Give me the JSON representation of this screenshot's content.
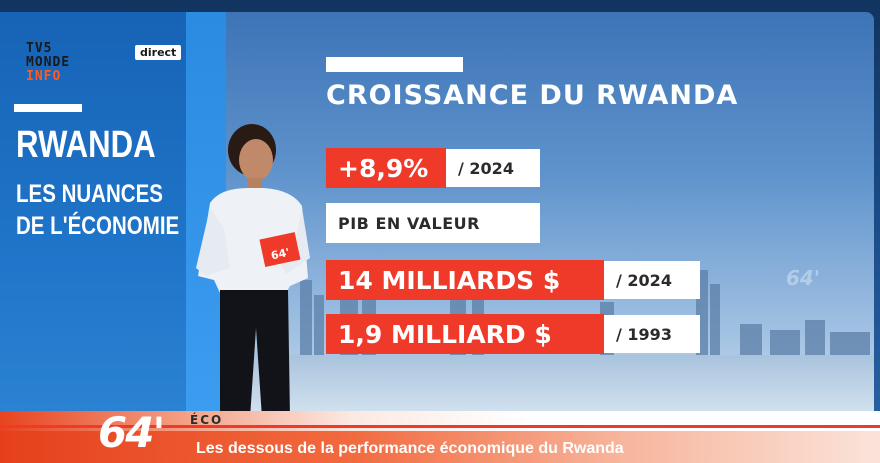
{
  "channel": {
    "logo_line1": "TV5",
    "logo_line2": "MONDE",
    "logo_line3": "INFO",
    "live_badge": "direct"
  },
  "sidebar": {
    "title": "RWANDA",
    "subtitle_line1": "LES NUANCES",
    "subtitle_line2": "DE L'ÉCONOMIE"
  },
  "graphic": {
    "title": "CROISSANCE DU RWANDA",
    "growth_value": "+8,9%",
    "growth_year": "/ 2024",
    "gdp_label": "PIB EN VALEUR",
    "gdp_2024_value": "14 MILLIARDS $",
    "gdp_2024_year": "/ 2024",
    "gdp_1993_value": "1,9 MILLIARD $",
    "gdp_1993_year": "/ 1993"
  },
  "card_label": "64'",
  "watermark": "64'",
  "ticker": {
    "show_logo": "64'",
    "section": "ÉCO",
    "headline": "Les dessous de la performance économique du Rwanda"
  },
  "colors": {
    "accent_red": "#ef3a2a",
    "panel_blue": "#1f75c9",
    "logo_orange": "#ff5a1f"
  }
}
